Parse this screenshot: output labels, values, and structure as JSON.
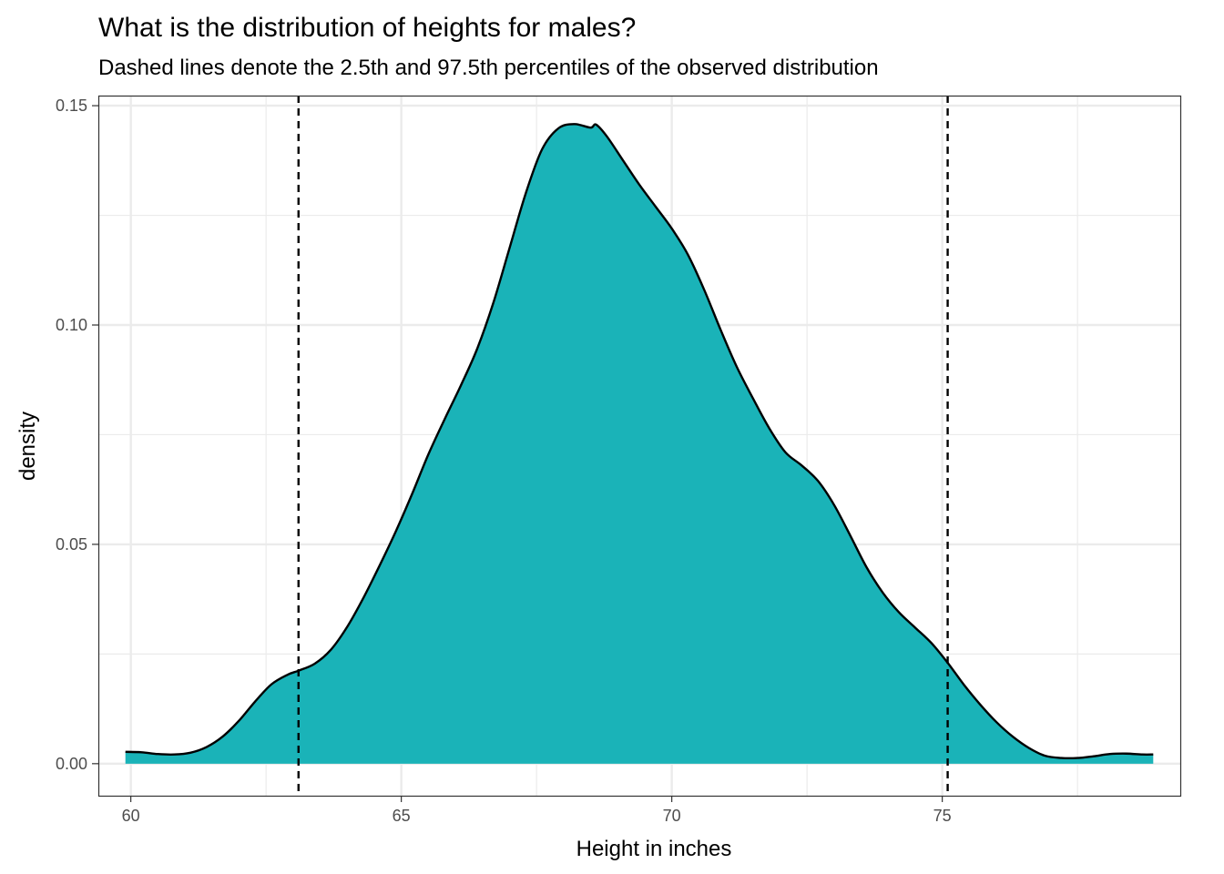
{
  "chart_data": {
    "type": "area",
    "title": "What is the distribution of heights for males?",
    "subtitle": "Dashed lines denote the 2.5th and 97.5th percentiles of the observed distribution",
    "xlabel": "Height in inches",
    "ylabel": "density",
    "xlim": [
      59.4,
      79.4
    ],
    "ylim": [
      -0.0073,
      0.1523
    ],
    "x_ticks": [
      60,
      65,
      70,
      75
    ],
    "x_tick_labels": [
      "60",
      "65",
      "70",
      "75"
    ],
    "y_ticks": [
      0.0,
      0.05,
      0.1,
      0.15
    ],
    "y_tick_labels": [
      "0.00",
      "0.05",
      "0.10",
      "0.15"
    ],
    "grid": true,
    "legend": "none",
    "fill_color": "#1ab3b8",
    "line_color": "#000000",
    "series": [
      {
        "x": [
          59.9,
          60.2,
          60.5,
          60.8,
          61.1,
          61.4,
          61.7,
          62.0,
          62.3,
          62.6,
          62.9,
          63.1,
          63.4,
          63.7,
          64.0,
          64.3,
          64.6,
          64.9,
          65.2,
          65.5,
          65.8,
          66.1,
          66.4,
          66.7,
          67.0,
          67.3,
          67.6,
          67.9,
          68.2,
          68.5,
          68.6,
          68.8,
          69.1,
          69.4,
          69.7,
          70.0,
          70.3,
          70.6,
          70.9,
          71.2,
          71.5,
          71.8,
          72.1,
          72.4,
          72.7,
          73.0,
          73.3,
          73.6,
          73.9,
          74.2,
          74.5,
          74.8,
          75.1,
          75.4,
          75.7,
          76.0,
          76.3,
          76.6,
          76.9,
          77.2,
          77.5,
          77.8,
          78.1,
          78.4,
          78.7,
          78.9
        ],
        "y": [
          0.0027,
          0.0026,
          0.0022,
          0.0021,
          0.0025,
          0.0038,
          0.0062,
          0.0098,
          0.0142,
          0.0181,
          0.0203,
          0.0212,
          0.0228,
          0.026,
          0.0312,
          0.0378,
          0.0452,
          0.053,
          0.0615,
          0.0705,
          0.0785,
          0.0862,
          0.0945,
          0.105,
          0.1175,
          0.13,
          0.14,
          0.1448,
          0.1458,
          0.145,
          0.1457,
          0.143,
          0.1375,
          0.132,
          0.127,
          0.122,
          0.116,
          0.108,
          0.099,
          0.0905,
          0.0833,
          0.0765,
          0.071,
          0.068,
          0.0645,
          0.059,
          0.052,
          0.0448,
          0.039,
          0.0345,
          0.031,
          0.0275,
          0.023,
          0.018,
          0.0135,
          0.0095,
          0.0062,
          0.0036,
          0.0018,
          0.0013,
          0.0013,
          0.0017,
          0.0022,
          0.0023,
          0.0021,
          0.0021
        ]
      }
    ],
    "vlines": [
      63.1,
      75.1
    ]
  }
}
